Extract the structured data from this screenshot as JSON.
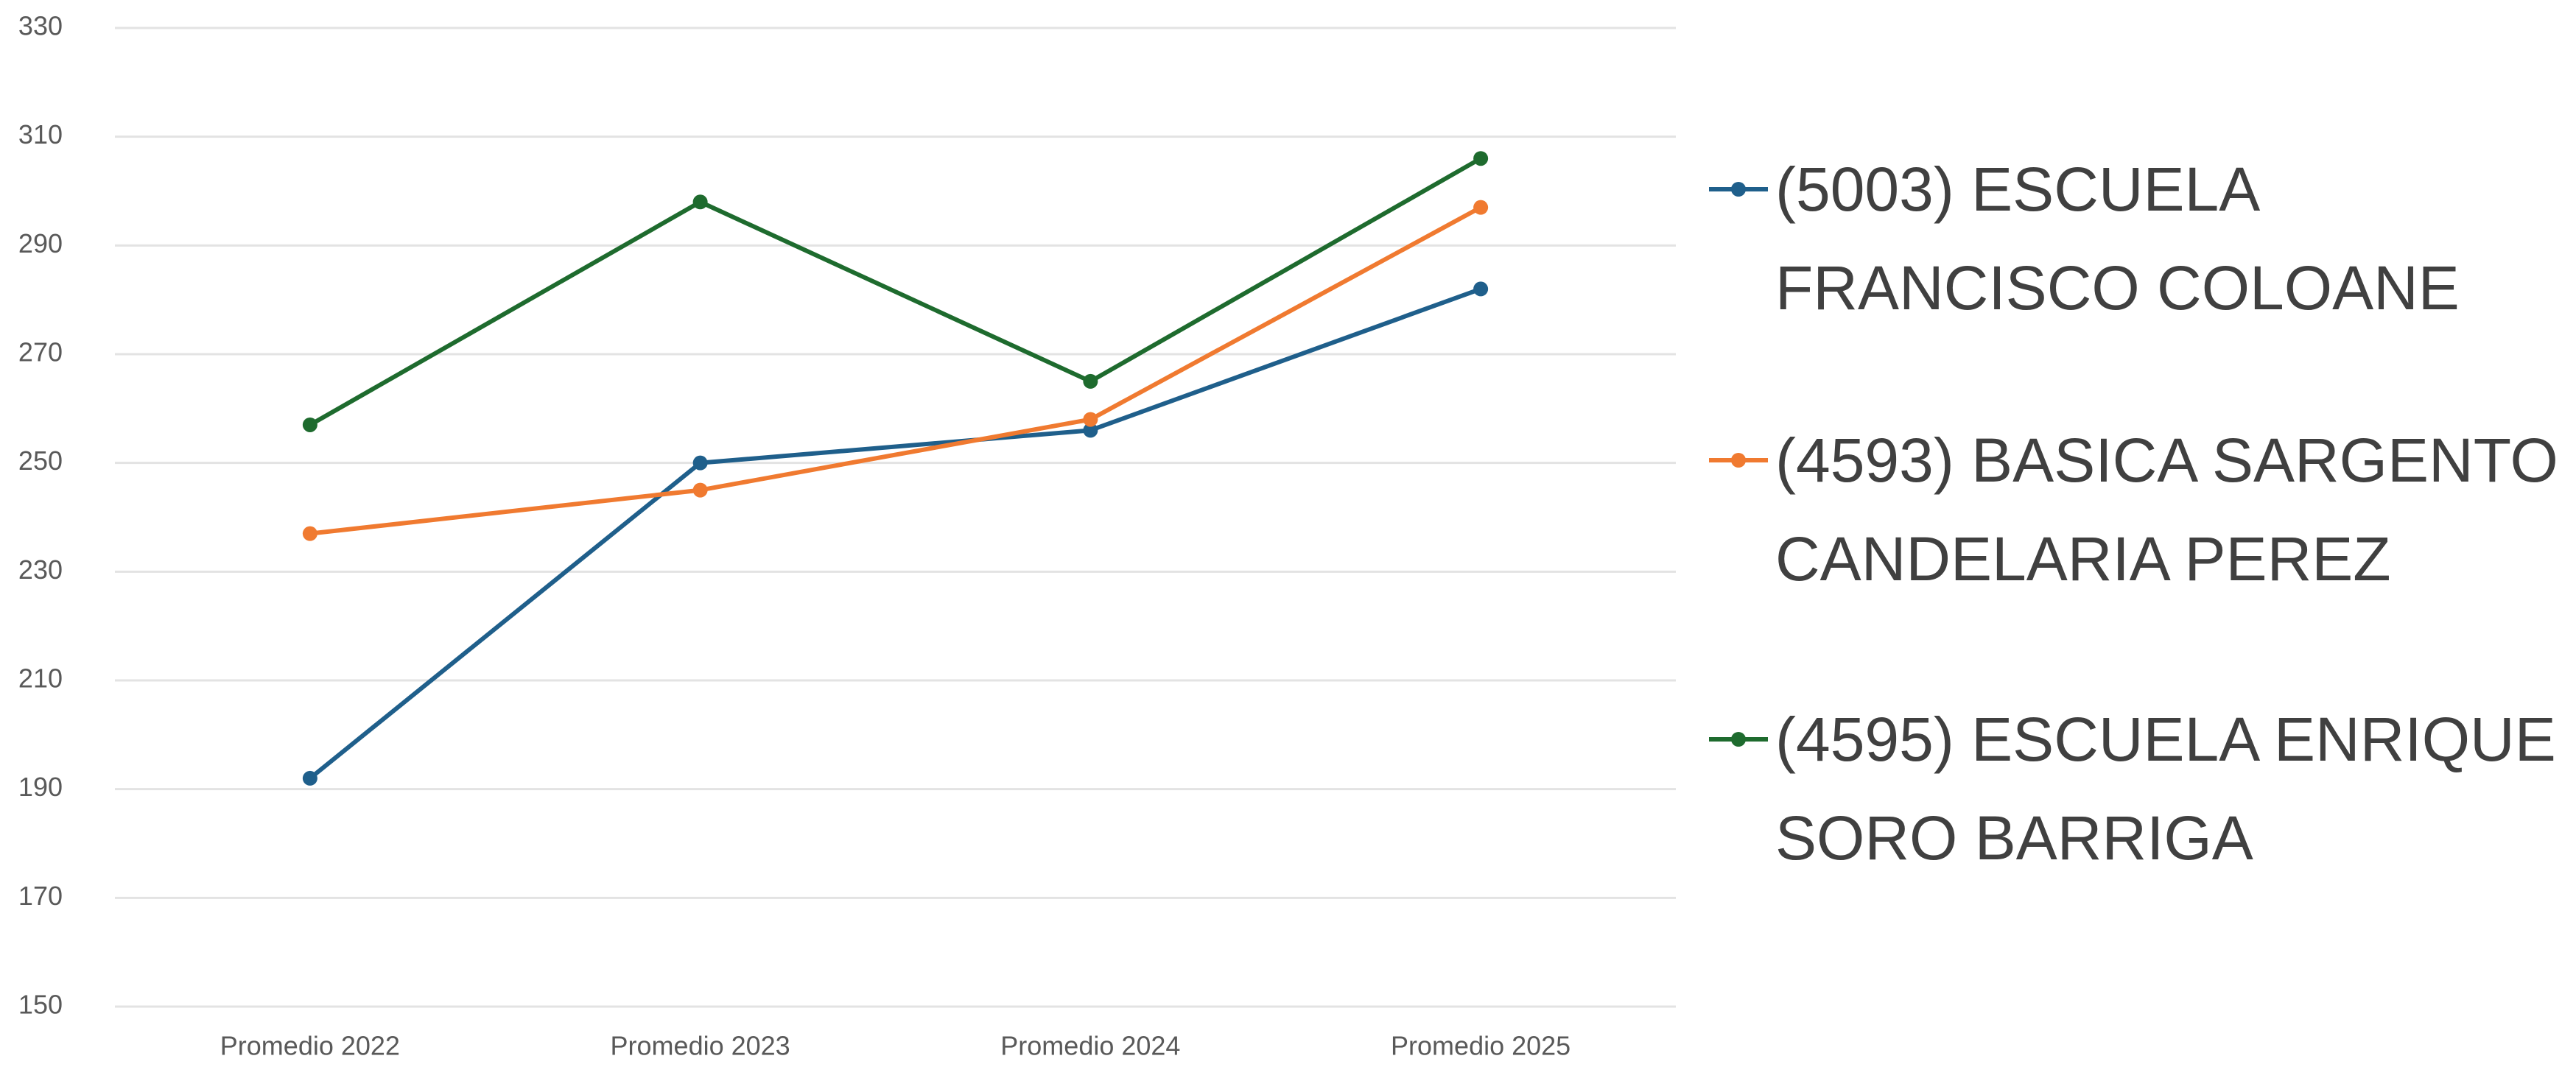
{
  "chart_data": {
    "type": "line",
    "categories": [
      "Promedio 2022",
      "Promedio 2023",
      "Promedio 2024",
      "Promedio 2025"
    ],
    "series": [
      {
        "name": "(5003) ESCUELA FRANCISCO COLOANE",
        "color": "#1f5f8b",
        "values": [
          192,
          250,
          256,
          282
        ]
      },
      {
        "name": "(4593) BASICA SARGENTO CANDELARIA PEREZ",
        "color": "#f07a30",
        "values": [
          237,
          245,
          258,
          297
        ]
      },
      {
        "name": "(4595) ESCUELA ENRIQUE SORO BARRIGA",
        "color": "#1e6b2e",
        "values": [
          257,
          298,
          265,
          306
        ]
      }
    ],
    "ylim": [
      150,
      330
    ],
    "yticks": [
      150,
      170,
      190,
      210,
      230,
      250,
      270,
      290,
      310,
      330
    ],
    "grid": true,
    "legend": "right"
  }
}
